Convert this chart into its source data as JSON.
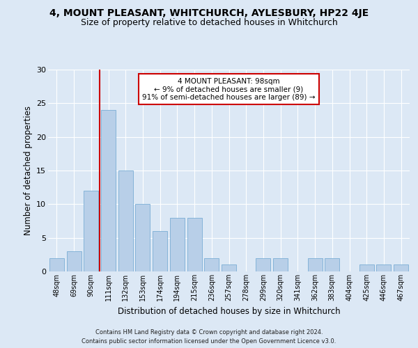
{
  "title1": "4, MOUNT PLEASANT, WHITCHURCH, AYLESBURY, HP22 4JE",
  "title2": "Size of property relative to detached houses in Whitchurch",
  "xlabel": "Distribution of detached houses by size in Whitchurch",
  "ylabel": "Number of detached properties",
  "footer1": "Contains HM Land Registry data © Crown copyright and database right 2024.",
  "footer2": "Contains public sector information licensed under the Open Government Licence v3.0.",
  "categories": [
    "48sqm",
    "69sqm",
    "90sqm",
    "111sqm",
    "132sqm",
    "153sqm",
    "174sqm",
    "194sqm",
    "215sqm",
    "236sqm",
    "257sqm",
    "278sqm",
    "299sqm",
    "320sqm",
    "341sqm",
    "362sqm",
    "383sqm",
    "404sqm",
    "425sqm",
    "446sqm",
    "467sqm"
  ],
  "values": [
    2,
    3,
    12,
    24,
    15,
    10,
    6,
    8,
    8,
    2,
    1,
    0,
    2,
    2,
    0,
    2,
    2,
    0,
    1,
    1,
    1
  ],
  "bar_color": "#b8cfe8",
  "bar_edge_color": "#7aadd4",
  "vline_color": "#cc0000",
  "annotation_text": "4 MOUNT PLEASANT: 98sqm\n← 9% of detached houses are smaller (9)\n91% of semi-detached houses are larger (89) →",
  "annotation_box_color": "#ffffff",
  "annotation_box_edge": "#cc0000",
  "ylim": [
    0,
    30
  ],
  "yticks": [
    0,
    5,
    10,
    15,
    20,
    25,
    30
  ],
  "bg_color": "#dce8f5",
  "plot_bg_color": "#dce8f5",
  "grid_color": "#ffffff",
  "title1_fontsize": 10,
  "title2_fontsize": 9,
  "xlabel_fontsize": 8.5,
  "ylabel_fontsize": 8.5,
  "annot_fontsize": 7.5,
  "tick_fontsize": 7,
  "footer_fontsize": 6
}
